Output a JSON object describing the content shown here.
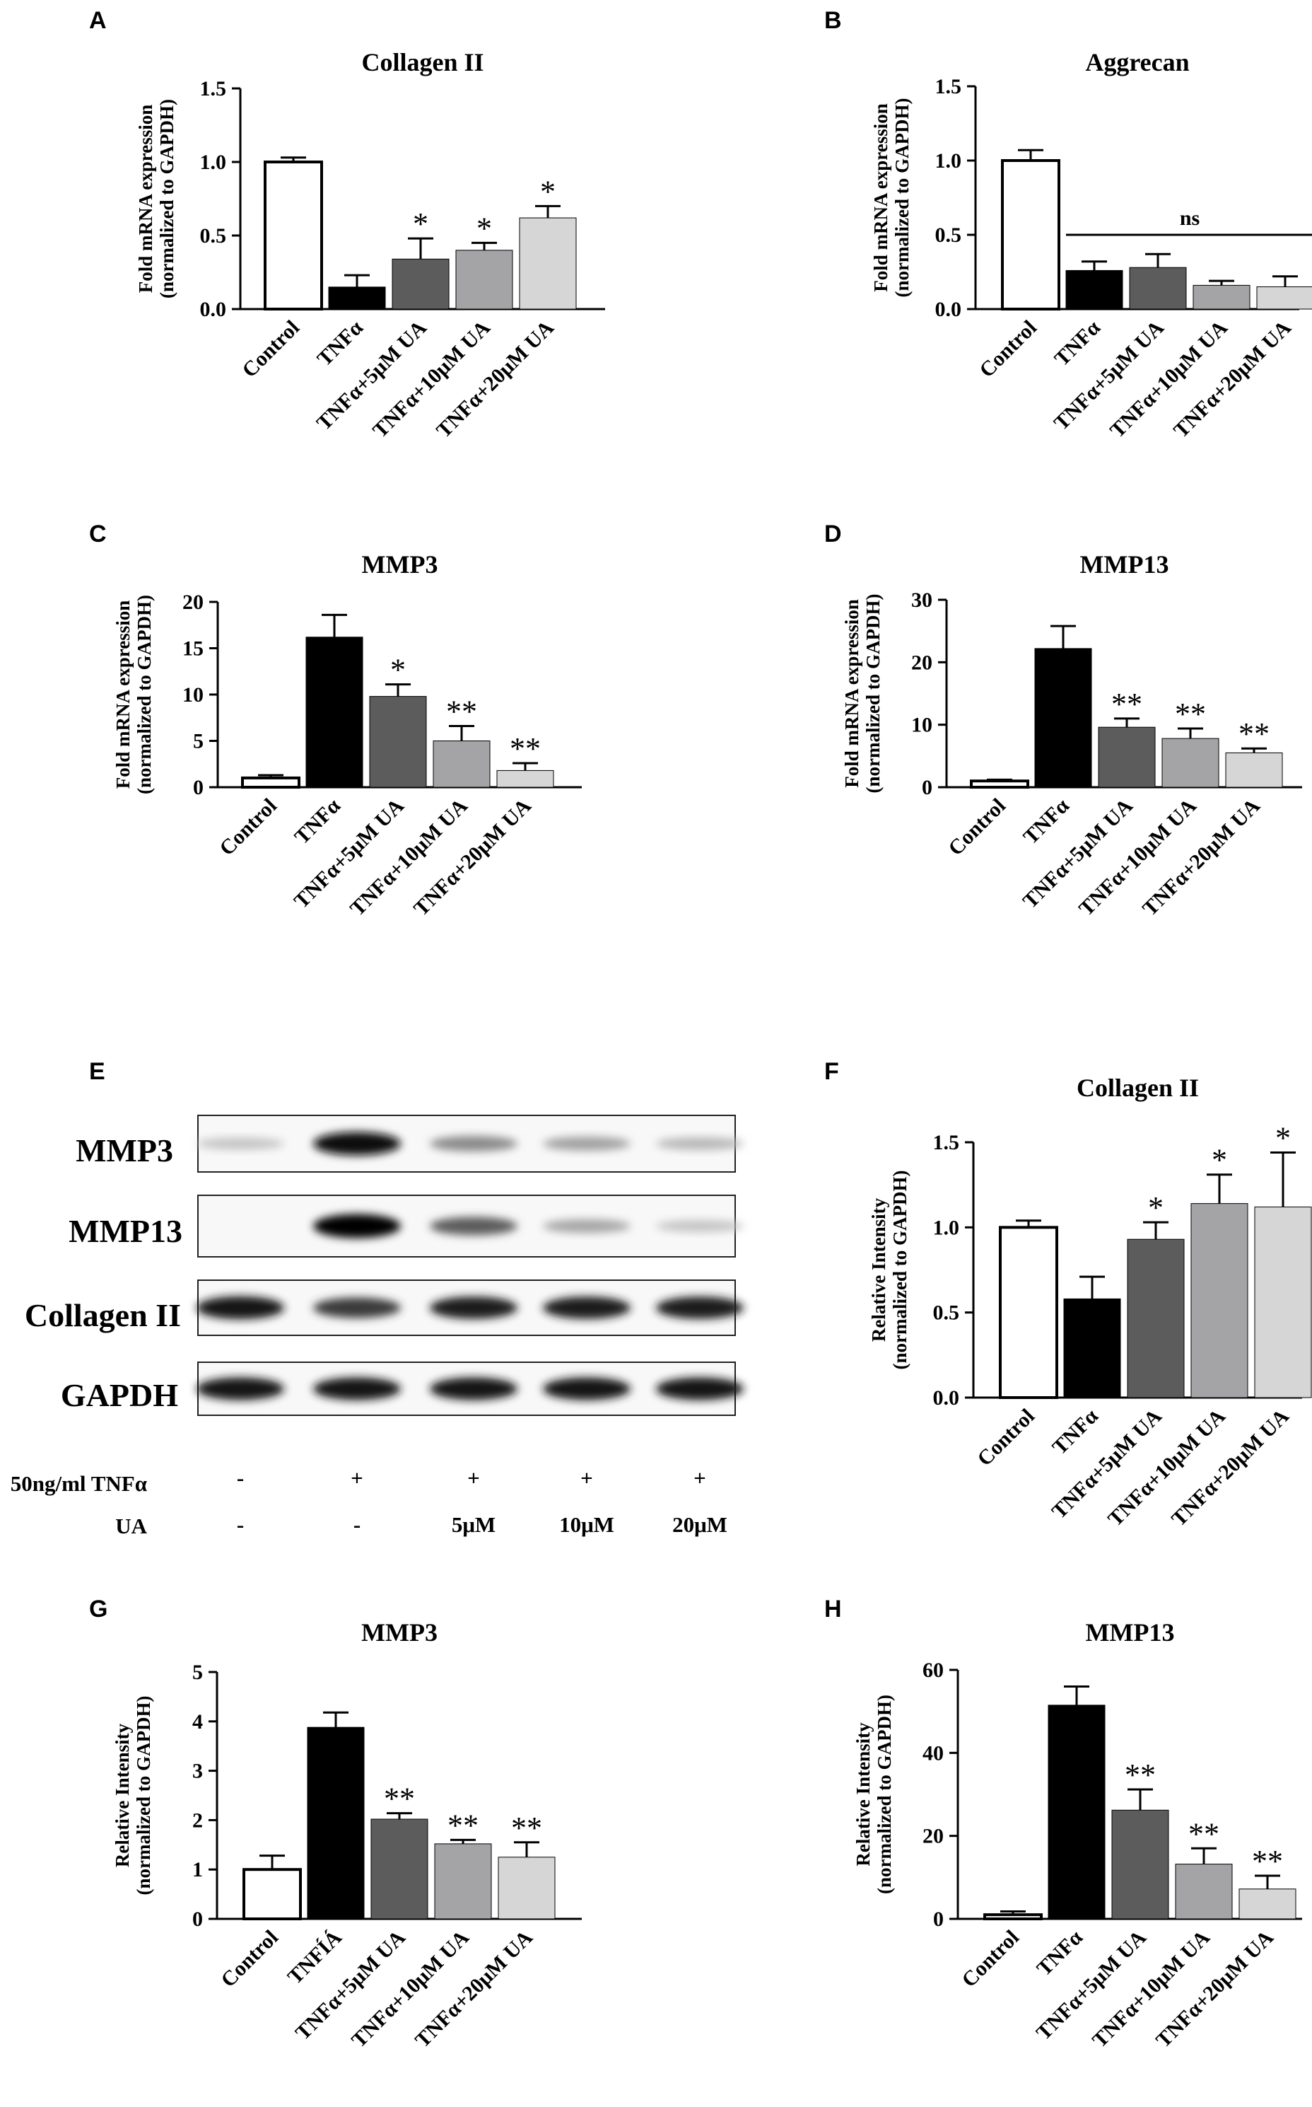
{
  "panel_letters": [
    "A",
    "B",
    "C",
    "D",
    "E",
    "F",
    "G",
    "H"
  ],
  "chart_data": [
    {
      "panel": "A",
      "type": "bar",
      "title": "Collagen II",
      "ylabel": [
        "Fold mRNA expression",
        "(normalized to GAPDH)"
      ],
      "categories": [
        "Control",
        "TNFα",
        "TNFα+5μM UA",
        "TNFα+10μM UA",
        "TNFα+20μM UA"
      ],
      "values": [
        1.0,
        0.15,
        0.34,
        0.4,
        0.62
      ],
      "errors": [
        0.03,
        0.08,
        0.14,
        0.05,
        0.08
      ],
      "significance": [
        "",
        "",
        "*",
        "*",
        "*"
      ],
      "ylim": [
        0,
        1.5
      ],
      "yticks": [
        0.0,
        0.5,
        1.0,
        1.5
      ],
      "ytick_labels": [
        "0.0",
        "0.5",
        "1.0",
        "1.5"
      ]
    },
    {
      "panel": "B",
      "type": "bar",
      "title": "Aggrecan",
      "ylabel": [
        "Fold mRNA expression",
        "(normalized to GAPDH)"
      ],
      "categories": [
        "Control",
        "TNFα",
        "TNFα+5μM UA",
        "TNFα+10μM UA",
        "TNFα+20μM UA"
      ],
      "values": [
        1.0,
        0.26,
        0.28,
        0.16,
        0.15
      ],
      "errors": [
        0.07,
        0.06,
        0.09,
        0.03,
        0.07
      ],
      "significance": [
        "",
        "",
        "",
        "",
        ""
      ],
      "bracket": {
        "label": "ns",
        "from": 1,
        "to": 4,
        "y": 0.5
      },
      "ylim": [
        0,
        1.5
      ],
      "yticks": [
        0.0,
        0.5,
        1.0,
        1.5
      ],
      "ytick_labels": [
        "0.0",
        "0.5",
        "1.0",
        "1.5"
      ]
    },
    {
      "panel": "C",
      "type": "bar",
      "title": "MMP3",
      "ylabel": [
        "Fold mRNA expression",
        "(normalized to GAPDH)"
      ],
      "categories": [
        "Control",
        "TNFα",
        "TNFα+5μM UA",
        "TNFα+10μM UA",
        "TNFα+20μM UA"
      ],
      "values": [
        1.0,
        16.2,
        9.8,
        5.0,
        1.8
      ],
      "errors": [
        0.3,
        2.4,
        1.3,
        1.6,
        0.8
      ],
      "significance": [
        "",
        "",
        "*",
        "**",
        "**"
      ],
      "ylim": [
        0,
        20
      ],
      "yticks": [
        0,
        5,
        10,
        15,
        20
      ],
      "ytick_labels": [
        "0",
        "5",
        "10",
        "15",
        "20"
      ]
    },
    {
      "panel": "D",
      "type": "bar",
      "title": "MMP13",
      "ylabel": [
        "Fold mRNA expression",
        "(normalized to GAPDH)"
      ],
      "categories": [
        "Control",
        "TNFα",
        "TNFα+5μM UA",
        "TNFα+10μM UA",
        "TNFα+20μM UA"
      ],
      "values": [
        1.0,
        22.2,
        9.6,
        7.8,
        5.5
      ],
      "errors": [
        0.2,
        3.6,
        1.4,
        1.6,
        0.7
      ],
      "significance": [
        "",
        "",
        "**",
        "**",
        "**"
      ],
      "ylim": [
        0,
        30
      ],
      "yticks": [
        0,
        10,
        20,
        30
      ],
      "ytick_labels": [
        "0",
        "10",
        "20",
        "30"
      ]
    },
    {
      "panel": "F",
      "type": "bar",
      "title": "Collagen II",
      "ylabel": [
        "Relative  Intensity",
        "(normalized to GAPDH)"
      ],
      "categories": [
        "Control",
        "TNFα",
        "TNFα+5μM UA",
        "TNFα+10μM UA",
        "TNFα+20μM UA"
      ],
      "values": [
        1.0,
        0.58,
        0.93,
        1.14,
        1.12
      ],
      "errors": [
        0.04,
        0.13,
        0.1,
        0.17,
        0.32
      ],
      "significance": [
        "",
        "",
        "*",
        "*",
        "*"
      ],
      "ylim": [
        0,
        1.5
      ],
      "yticks": [
        0.0,
        0.5,
        1.0,
        1.5
      ],
      "ytick_labels": [
        "0.0",
        "0.5",
        "1.0",
        "1.5"
      ]
    },
    {
      "panel": "G",
      "type": "bar",
      "title": "MMP3",
      "ylabel": [
        "Relative  Intensity",
        "(normalized to GAPDH)"
      ],
      "categories": [
        "Control",
        "TNFÍÁ",
        "TNFα+5μM UA",
        "TNFα+10μM UA",
        "TNFα+20μM UA"
      ],
      "values": [
        1.0,
        3.88,
        2.02,
        1.52,
        1.25
      ],
      "errors": [
        0.28,
        0.3,
        0.12,
        0.08,
        0.3
      ],
      "significance": [
        "",
        "",
        "**",
        "**",
        "**"
      ],
      "ylim": [
        0,
        5
      ],
      "yticks": [
        0,
        1,
        2,
        3,
        4,
        5
      ],
      "ytick_labels": [
        "0",
        "1",
        "2",
        "3",
        "4",
        "5"
      ]
    },
    {
      "panel": "H",
      "type": "bar",
      "title": "MMP13",
      "ylabel": [
        "Relative  Intensity",
        "(normalized to GAPDH)"
      ],
      "categories": [
        "Control",
        "TNFα",
        "TNFα+5μM UA",
        "TNFα+10μM UA",
        "TNFα+20μM UA"
      ],
      "values": [
        1.0,
        51.5,
        26.2,
        13.2,
        7.2
      ],
      "errors": [
        0.8,
        4.5,
        5.0,
        3.8,
        3.2
      ],
      "significance": [
        "",
        "",
        "**",
        "**",
        "**"
      ],
      "ylim": [
        0,
        60
      ],
      "yticks": [
        0,
        20,
        40,
        60
      ],
      "ytick_labels": [
        "0",
        "20",
        "40",
        "60"
      ]
    }
  ],
  "western_blot": {
    "panel": "E",
    "bands": [
      {
        "label": "MMP3",
        "intensities": [
          0.15,
          0.95,
          0.4,
          0.3,
          0.2
        ]
      },
      {
        "label": "MMP13",
        "intensities": [
          0.0,
          1.0,
          0.6,
          0.28,
          0.15
        ]
      },
      {
        "label": "Collagen II",
        "intensities": [
          0.92,
          0.75,
          0.88,
          0.88,
          0.88
        ]
      },
      {
        "label": "GAPDH",
        "intensities": [
          0.9,
          0.9,
          0.9,
          0.9,
          0.9
        ]
      }
    ],
    "conditions": [
      {
        "label": "50ng/ml TNFα",
        "values": [
          "-",
          "+",
          "+",
          "+",
          "+"
        ]
      },
      {
        "label": "UA",
        "values": [
          "-",
          "-",
          "5μM",
          "10μM",
          "20μM"
        ]
      }
    ]
  },
  "colors": {
    "bar_fills": [
      "#ffffff",
      "#000000",
      "#5c5c5c",
      "#a4a4a6",
      "#d6d6d6"
    ],
    "axis": "#000000",
    "text": "#000000"
  }
}
